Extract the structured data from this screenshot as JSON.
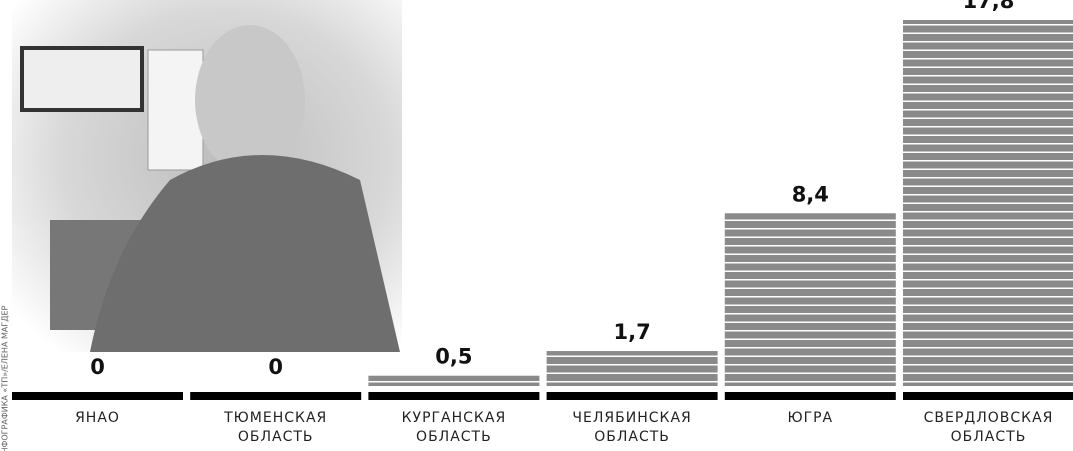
{
  "credit": "ИНФОГРАФИКА «ТП»/ЕЛЕНА МАГДЕР",
  "chart_data": {
    "type": "bar",
    "categories": [
      "ЯНАО",
      "ТЮМЕНСКАЯ ОБЛАСТЬ",
      "КУРГАНСКАЯ ОБЛАСТЬ",
      "ЧЕЛЯБИНСКАЯ ОБЛАСТЬ",
      "ЮГРА",
      "СВЕРДЛОВСКАЯ ОБЛАСТЬ"
    ],
    "values": [
      0,
      0,
      0.5,
      1.7,
      8.4,
      17.8
    ],
    "value_labels": [
      "0",
      "0",
      "0,5",
      "1,7",
      "8,4",
      "17,8"
    ],
    "color": "#8a8a8a"
  }
}
